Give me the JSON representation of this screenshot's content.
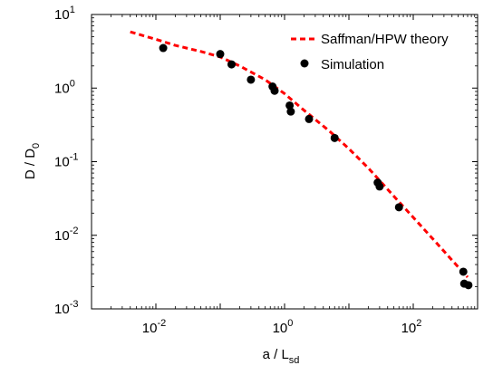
{
  "chart_data": {
    "type": "scatter",
    "xscale": "log",
    "yscale": "log",
    "xlim": [
      0.001,
      1000
    ],
    "ylim": [
      0.001,
      10
    ],
    "grid": false,
    "legend_position": "top-right",
    "xlabel": {
      "main": "a / L",
      "sub": "sd"
    },
    "ylabel": {
      "main": "D / D",
      "sub": "0"
    },
    "xticks": [
      {
        "value": 0.01,
        "base": "10",
        "exp": "-2"
      },
      {
        "value": 1,
        "base": "10",
        "exp": "0"
      },
      {
        "value": 100,
        "base": "10",
        "exp": "2"
      }
    ],
    "yticks": [
      {
        "value": 0.001,
        "base": "10",
        "exp": "-3"
      },
      {
        "value": 0.01,
        "base": "10",
        "exp": "-2"
      },
      {
        "value": 0.1,
        "base": "10",
        "exp": "-1"
      },
      {
        "value": 1,
        "base": "10",
        "exp": "0"
      },
      {
        "value": 10,
        "base": "10",
        "exp": "1"
      }
    ],
    "series": [
      {
        "name": "Saffman/HPW theory",
        "kind": "line",
        "style": "dashed",
        "color": "#ff0000",
        "x": [
          0.004,
          0.01,
          0.02,
          0.05,
          0.1,
          0.2,
          0.5,
          1,
          2,
          5,
          10,
          20,
          50,
          100,
          200,
          500,
          700
        ],
        "y": [
          5.8,
          4.6,
          3.8,
          3.15,
          2.65,
          2.0,
          1.3,
          0.84,
          0.5,
          0.26,
          0.15,
          0.082,
          0.034,
          0.0175,
          0.009,
          0.0037,
          0.0027
        ]
      },
      {
        "name": "Simulation",
        "kind": "scatter",
        "marker": "circle",
        "color": "#000000",
        "x": [
          0.013,
          0.1,
          0.15,
          0.3,
          0.65,
          0.7,
          1.2,
          1.25,
          2.4,
          6,
          28,
          30,
          60,
          600,
          620,
          720
        ],
        "y": [
          3.5,
          2.9,
          2.1,
          1.3,
          1.05,
          0.92,
          0.58,
          0.48,
          0.38,
          0.21,
          0.052,
          0.046,
          0.024,
          0.0032,
          0.0022,
          0.0021
        ]
      }
    ]
  }
}
